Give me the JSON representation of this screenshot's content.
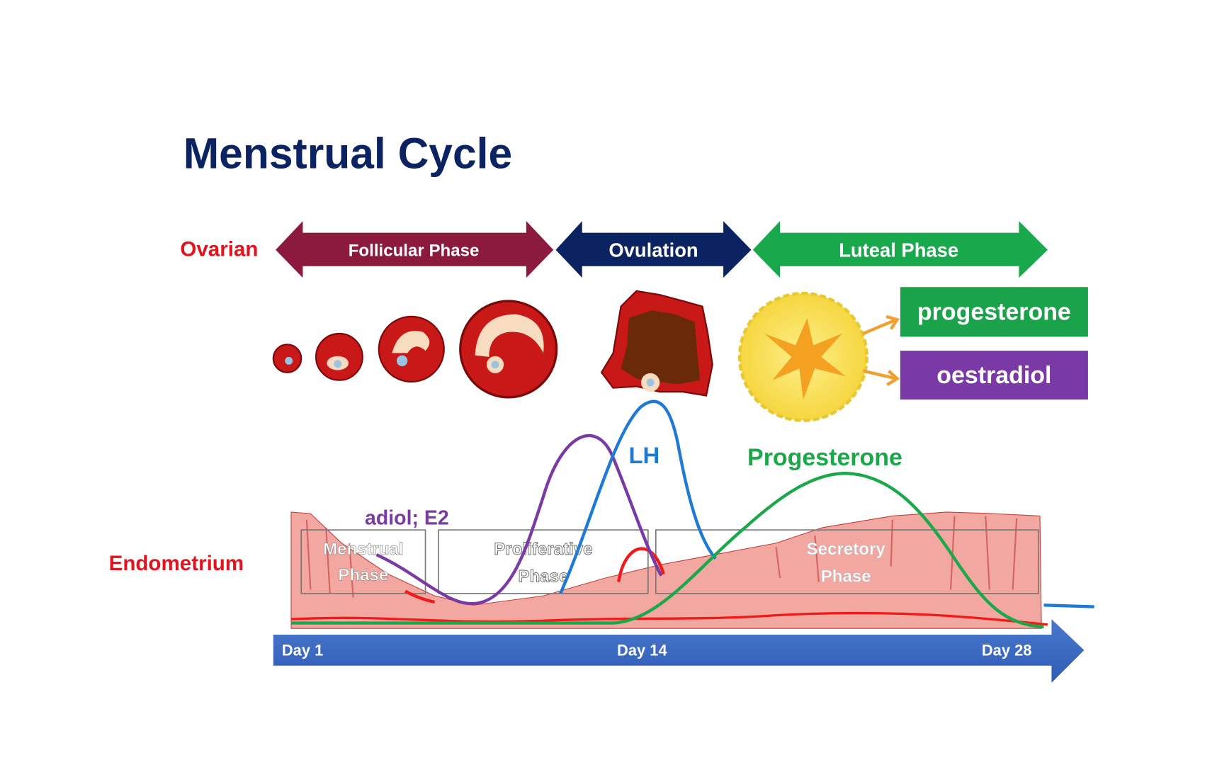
{
  "title": "Menstrual Cycle",
  "ovarian": {
    "label": "Ovarian",
    "phases": [
      {
        "label": "Follicular Phase",
        "color": "#8b1a3c"
      },
      {
        "label": "Ovulation",
        "color": "#0b2461"
      },
      {
        "label": "Luteal Phase",
        "color": "#19a94c"
      }
    ],
    "secretions": [
      {
        "label": "progesterone",
        "color": "#1aa34a"
      },
      {
        "label": "oestradiol",
        "color": "#7a3aa6"
      }
    ]
  },
  "hormones": {
    "lh_label": "LH",
    "progesterone_label": "Progesterone",
    "e2_label": "adiol; E2",
    "colors": {
      "e2": "#7a3aa6",
      "lh": "#1f7ad6",
      "progesterone": "#1aa84a",
      "fsh": "#f01a1a"
    }
  },
  "endometrium": {
    "label": "Endometrium",
    "phases": [
      {
        "line1": "Menstrual",
        "line2": "Phase"
      },
      {
        "line1": "Proliferative",
        "line2": "Phase"
      },
      {
        "line1": "Secretory",
        "line2": "Phase"
      }
    ]
  },
  "timeline": {
    "days": [
      "Day 1",
      "Day 14",
      "Day 28"
    ],
    "color": "#3f6cc4"
  }
}
